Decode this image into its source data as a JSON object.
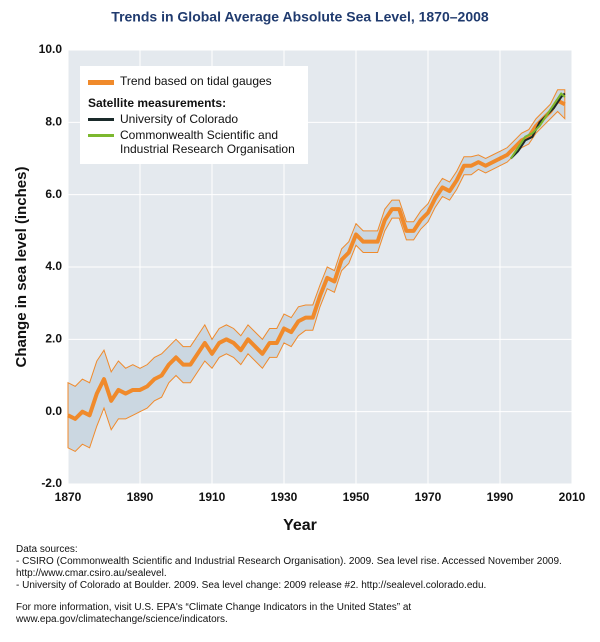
{
  "chart_data": {
    "type": "line",
    "title": "Trends in Global Average Absolute Sea Level, 1870–2008",
    "x_label": "Year",
    "y_label": "Change in sea level (inches)",
    "xlim": [
      1870,
      2010
    ],
    "xticks": [
      1870,
      1890,
      1910,
      1930,
      1950,
      1970,
      1990,
      2010
    ],
    "ylim": [
      -2,
      10
    ],
    "yticks": [
      {
        "value": -2,
        "label": "-2.0"
      },
      {
        "value": 0,
        "label": "0.0"
      },
      {
        "value": 2,
        "label": "2.0"
      },
      {
        "value": 4,
        "label": "4.0"
      },
      {
        "value": 6,
        "label": "6.0"
      },
      {
        "value": 8,
        "label": "8.0"
      },
      {
        "value": 10,
        "label": "10.0"
      }
    ],
    "grid": true,
    "legend_group_title": "Satellite measurements:",
    "series": [
      {
        "name": "Trend based on tidal gauges",
        "color": "#f08a2b",
        "band_color": "#cbd7e1",
        "x": [
          1870,
          1872,
          1874,
          1876,
          1878,
          1880,
          1882,
          1884,
          1886,
          1888,
          1890,
          1892,
          1894,
          1896,
          1898,
          1900,
          1902,
          1904,
          1906,
          1908,
          1910,
          1912,
          1914,
          1916,
          1918,
          1920,
          1922,
          1924,
          1926,
          1928,
          1930,
          1932,
          1934,
          1936,
          1938,
          1940,
          1942,
          1944,
          1946,
          1948,
          1950,
          1952,
          1954,
          1956,
          1958,
          1960,
          1962,
          1964,
          1966,
          1968,
          1970,
          1972,
          1974,
          1976,
          1978,
          1980,
          1982,
          1984,
          1986,
          1988,
          1990,
          1992,
          1994,
          1996,
          1998,
          2000,
          2002,
          2004,
          2006,
          2008
        ],
        "values": [
          -0.1,
          -0.2,
          0.0,
          -0.1,
          0.5,
          0.9,
          0.3,
          0.6,
          0.5,
          0.6,
          0.6,
          0.7,
          0.9,
          1.0,
          1.3,
          1.5,
          1.3,
          1.3,
          1.6,
          1.9,
          1.6,
          1.9,
          2.0,
          1.9,
          1.7,
          2.0,
          1.8,
          1.6,
          1.9,
          1.9,
          2.3,
          2.2,
          2.5,
          2.6,
          2.6,
          3.2,
          3.7,
          3.6,
          4.2,
          4.4,
          4.9,
          4.7,
          4.7,
          4.7,
          5.3,
          5.6,
          5.6,
          5.0,
          5.0,
          5.3,
          5.5,
          5.9,
          6.2,
          6.1,
          6.4,
          6.8,
          6.8,
          6.9,
          6.8,
          6.9,
          7.0,
          7.1,
          7.3,
          7.5,
          7.6,
          7.9,
          8.1,
          8.3,
          8.6,
          8.5
        ],
        "error": [
          0.9,
          0.9,
          0.9,
          0.9,
          0.9,
          0.8,
          0.8,
          0.8,
          0.7,
          0.7,
          0.6,
          0.6,
          0.6,
          0.6,
          0.5,
          0.5,
          0.5,
          0.5,
          0.5,
          0.5,
          0.4,
          0.4,
          0.4,
          0.4,
          0.4,
          0.4,
          0.4,
          0.4,
          0.4,
          0.4,
          0.4,
          0.4,
          0.4,
          0.35,
          0.35,
          0.3,
          0.3,
          0.3,
          0.3,
          0.3,
          0.3,
          0.3,
          0.3,
          0.3,
          0.3,
          0.25,
          0.25,
          0.25,
          0.25,
          0.25,
          0.25,
          0.25,
          0.25,
          0.25,
          0.25,
          0.25,
          0.25,
          0.2,
          0.2,
          0.2,
          0.2,
          0.2,
          0.2,
          0.2,
          0.2,
          0.2,
          0.2,
          0.2,
          0.3,
          0.4
        ]
      },
      {
        "name": "University of Colorado",
        "color": "#1a2a2a",
        "x": [
          1993,
          1995,
          1997,
          1999,
          2001,
          2003,
          2005,
          2007,
          2008
        ],
        "values": [
          7.0,
          7.2,
          7.5,
          7.6,
          8.0,
          8.2,
          8.4,
          8.7,
          8.8
        ]
      },
      {
        "name": "Commonwealth Scientific and Industrial Research Organisation",
        "color": "#7cb82f",
        "x": [
          1993,
          1995,
          1997,
          1999,
          2001,
          2003,
          2005,
          2007,
          2008
        ],
        "values": [
          7.0,
          7.3,
          7.6,
          7.7,
          7.9,
          8.2,
          8.5,
          8.8,
          8.7
        ]
      }
    ],
    "notes": [
      "Data sources:",
      "- CSIRO (Commonwealth Scientific and Industrial Research Organisation). 2009. Sea level rise. Accessed November 2009.",
      "http://www.cmar.csiro.au/sealevel.",
      "- University of Colorado at Boulder. 2009. Sea level change: 2009 release #2. http://sealevel.colorado.edu.",
      "For more information, visit U.S. EPA's “Climate Change Indicators in the United States” at",
      "www.epa.gov/climatechange/science/indicators."
    ]
  }
}
